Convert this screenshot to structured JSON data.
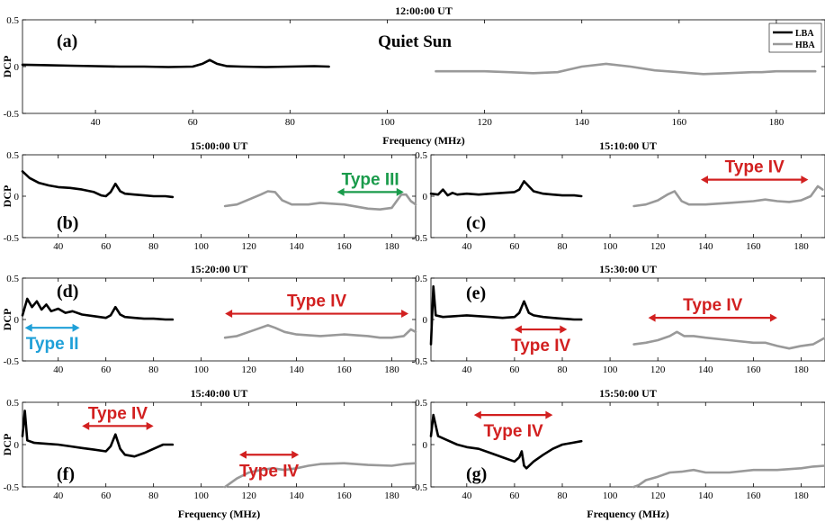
{
  "chart_data": [
    {
      "type": "line",
      "panel_label": "(a)",
      "title": "12:00:00 UT",
      "subtitle": "Quiet Sun",
      "ylabel": "DCP",
      "xlabel": "Frequency (MHz)",
      "xlim": [
        25,
        190
      ],
      "ylim": [
        -0.5,
        0.5
      ],
      "xticks": [
        40,
        60,
        80,
        100,
        120,
        140,
        160,
        180
      ],
      "yticks": [
        -0.5,
        0,
        0.5
      ],
      "legend": {
        "position": "top-right",
        "entries": [
          "LBA",
          "HBA"
        ]
      },
      "series": [
        {
          "name": "LBA",
          "color": "#000000",
          "x": [
            25,
            30,
            35,
            40,
            45,
            50,
            55,
            60,
            62,
            63.5,
            65,
            67,
            70,
            75,
            80,
            85,
            88
          ],
          "y": [
            0.02,
            0.015,
            0.01,
            0.005,
            0.0,
            0.0,
            -0.005,
            0.0,
            0.03,
            0.07,
            0.03,
            0.005,
            0.0,
            -0.005,
            0.0,
            0.005,
            0.0
          ]
        },
        {
          "name": "HBA",
          "color": "#999999",
          "x": [
            110,
            115,
            120,
            125,
            130,
            135,
            140,
            145,
            150,
            155,
            160,
            165,
            170,
            175,
            177,
            180,
            185,
            188
          ],
          "y": [
            -0.05,
            -0.05,
            -0.05,
            -0.06,
            -0.07,
            -0.06,
            0.0,
            0.03,
            0.0,
            -0.04,
            -0.06,
            -0.08,
            -0.07,
            -0.06,
            -0.06,
            -0.05,
            -0.05,
            -0.05
          ]
        }
      ],
      "annotations": []
    },
    {
      "type": "line",
      "panel_label": "(b)",
      "title": "15:00:00 UT",
      "ylabel": "DCP",
      "xlabel": "",
      "xlim": [
        25,
        190
      ],
      "ylim": [
        -0.5,
        0.5
      ],
      "xticks": [
        40,
        60,
        80,
        100,
        120,
        140,
        160,
        180
      ],
      "yticks": [
        -0.5,
        0,
        0.5
      ],
      "series": [
        {
          "name": "LBA",
          "color": "#000000",
          "x": [
            25,
            28,
            32,
            36,
            40,
            45,
            50,
            55,
            58,
            60,
            62,
            64,
            66,
            68,
            72,
            76,
            80,
            85,
            88
          ],
          "y": [
            0.3,
            0.22,
            0.16,
            0.13,
            0.11,
            0.1,
            0.08,
            0.05,
            0.01,
            0.0,
            0.05,
            0.15,
            0.06,
            0.03,
            0.02,
            0.01,
            0.0,
            0.0,
            -0.01
          ]
        },
        {
          "name": "HBA",
          "color": "#999999",
          "x": [
            110,
            115,
            120,
            125,
            128,
            131,
            134,
            138,
            145,
            150,
            160,
            170,
            175,
            180,
            184,
            186,
            188,
            190
          ],
          "y": [
            -0.12,
            -0.1,
            -0.04,
            0.02,
            0.06,
            0.05,
            -0.05,
            -0.1,
            -0.1,
            -0.08,
            -0.1,
            -0.15,
            -0.16,
            -0.14,
            0.02,
            0.02,
            -0.06,
            -0.1
          ]
        }
      ],
      "annotations": [
        {
          "text": "Type III",
          "color": "#1a9b4b",
          "x_start": 157,
          "x_end": 185,
          "y": 0.05
        }
      ]
    },
    {
      "type": "line",
      "panel_label": "(c)",
      "title": "15:10:00 UT",
      "ylabel": "",
      "xlabel": "",
      "xlim": [
        25,
        190
      ],
      "ylim": [
        -0.5,
        0.5
      ],
      "xticks": [
        40,
        60,
        80,
        100,
        120,
        140,
        160,
        180
      ],
      "yticks": [
        -0.5,
        0,
        0.5
      ],
      "series": [
        {
          "name": "LBA",
          "color": "#000000",
          "x": [
            25,
            28,
            30,
            32,
            34,
            36,
            40,
            45,
            50,
            55,
            60,
            62,
            64,
            66,
            68,
            72,
            76,
            80,
            85,
            88
          ],
          "y": [
            0.03,
            0.02,
            0.08,
            0.01,
            0.04,
            0.02,
            0.03,
            0.02,
            0.03,
            0.04,
            0.05,
            0.08,
            0.18,
            0.12,
            0.06,
            0.03,
            0.02,
            0.01,
            0.01,
            0.0
          ]
        },
        {
          "name": "HBA",
          "color": "#999999",
          "x": [
            110,
            115,
            120,
            124,
            127,
            130,
            133,
            140,
            150,
            160,
            165,
            170,
            175,
            180,
            184,
            187,
            189
          ],
          "y": [
            -0.12,
            -0.1,
            -0.05,
            0.02,
            0.06,
            -0.06,
            -0.1,
            -0.1,
            -0.08,
            -0.06,
            -0.04,
            -0.06,
            -0.07,
            -0.05,
            0.0,
            0.12,
            0.08
          ]
        }
      ],
      "annotations": [
        {
          "text": "Type IV",
          "color": "#d22020",
          "x_start": 138,
          "x_end": 183,
          "y": 0.2
        }
      ]
    },
    {
      "type": "line",
      "panel_label": "(d)",
      "title": "15:20:00 UT",
      "ylabel": "DCP",
      "xlabel": "",
      "xlim": [
        25,
        190
      ],
      "ylim": [
        -0.5,
        0.5
      ],
      "xticks": [
        40,
        60,
        80,
        100,
        120,
        140,
        160,
        180
      ],
      "yticks": [
        -0.5,
        0,
        0.5
      ],
      "series": [
        {
          "name": "LBA",
          "color": "#000000",
          "x": [
            25,
            27,
            29,
            31,
            33,
            35,
            37,
            40,
            43,
            46,
            50,
            55,
            60,
            62,
            64,
            66,
            68,
            72,
            76,
            80,
            85,
            88
          ],
          "y": [
            0.05,
            0.25,
            0.15,
            0.22,
            0.12,
            0.18,
            0.1,
            0.13,
            0.08,
            0.1,
            0.06,
            0.04,
            0.02,
            0.05,
            0.15,
            0.06,
            0.03,
            0.02,
            0.01,
            0.01,
            0.0,
            0.0
          ]
        },
        {
          "name": "HBA",
          "color": "#999999",
          "x": [
            110,
            115,
            120,
            125,
            128,
            131,
            135,
            140,
            150,
            160,
            170,
            175,
            180,
            185,
            188,
            190
          ],
          "y": [
            -0.22,
            -0.2,
            -0.15,
            -0.1,
            -0.07,
            -0.1,
            -0.15,
            -0.18,
            -0.2,
            -0.18,
            -0.2,
            -0.22,
            -0.22,
            -0.2,
            -0.12,
            -0.15
          ]
        }
      ],
      "annotations": [
        {
          "text": "Type IV",
          "color": "#d22020",
          "x_start": 110,
          "x_end": 187,
          "y": 0.07
        },
        {
          "text": "Type II",
          "color": "#1fa0d8",
          "x_start": 26,
          "x_end": 49,
          "y": -0.1
        }
      ]
    },
    {
      "type": "line",
      "panel_label": "(e)",
      "title": "15:30:00 UT",
      "ylabel": "",
      "xlabel": "",
      "xlim": [
        25,
        190
      ],
      "ylim": [
        -0.5,
        0.5
      ],
      "xticks": [
        40,
        60,
        80,
        100,
        120,
        140,
        160,
        180
      ],
      "yticks": [
        -0.5,
        0,
        0.5
      ],
      "series": [
        {
          "name": "LBA",
          "color": "#000000",
          "x": [
            25,
            26,
            27,
            30,
            35,
            40,
            45,
            50,
            55,
            60,
            62,
            64,
            66,
            68,
            72,
            76,
            80,
            85,
            88
          ],
          "y": [
            -0.3,
            0.4,
            0.05,
            0.03,
            0.04,
            0.05,
            0.04,
            0.03,
            0.02,
            0.03,
            0.08,
            0.22,
            0.08,
            0.05,
            0.03,
            0.02,
            0.01,
            0.0,
            0.0
          ]
        },
        {
          "name": "HBA",
          "color": "#999999",
          "x": [
            110,
            115,
            120,
            125,
            128,
            131,
            135,
            140,
            150,
            160,
            165,
            170,
            175,
            180,
            185,
            190
          ],
          "y": [
            -0.3,
            -0.28,
            -0.25,
            -0.2,
            -0.15,
            -0.2,
            -0.2,
            -0.22,
            -0.25,
            -0.28,
            -0.28,
            -0.32,
            -0.35,
            -0.32,
            -0.3,
            -0.22
          ]
        }
      ],
      "annotations": [
        {
          "text": "Type IV",
          "color": "#d22020",
          "x_start": 116,
          "x_end": 170,
          "y": 0.02
        },
        {
          "text": "Type IV",
          "color": "#d22020",
          "x_start": 60,
          "x_end": 82,
          "y": -0.12
        }
      ]
    },
    {
      "type": "line",
      "panel_label": "(f)",
      "title": "15:40:00 UT",
      "ylabel": "DCP",
      "xlabel": "Frequency (MHz)",
      "xlim": [
        25,
        190
      ],
      "ylim": [
        -0.5,
        0.5
      ],
      "xticks": [
        40,
        60,
        80,
        100,
        120,
        140,
        160,
        180
      ],
      "yticks": [
        -0.5,
        0,
        0.5
      ],
      "series": [
        {
          "name": "LBA",
          "color": "#000000",
          "x": [
            25,
            26,
            27,
            30,
            35,
            40,
            45,
            50,
            55,
            60,
            62,
            64,
            66,
            68,
            72,
            76,
            80,
            84,
            88
          ],
          "y": [
            0.1,
            0.4,
            0.05,
            0.02,
            0.01,
            0.0,
            -0.02,
            -0.04,
            -0.06,
            -0.08,
            -0.02,
            0.12,
            -0.05,
            -0.12,
            -0.14,
            -0.1,
            -0.05,
            0.0,
            0.0
          ]
        },
        {
          "name": "HBA",
          "color": "#999999",
          "x": [
            110,
            115,
            120,
            125,
            130,
            135,
            140,
            145,
            150,
            160,
            170,
            180,
            185,
            190
          ],
          "y": [
            -0.5,
            -0.4,
            -0.33,
            -0.3,
            -0.28,
            -0.3,
            -0.28,
            -0.25,
            -0.23,
            -0.22,
            -0.24,
            -0.25,
            -0.23,
            -0.22
          ]
        }
      ],
      "annotations": [
        {
          "text": "Type IV",
          "color": "#d22020",
          "x_start": 50,
          "x_end": 80,
          "y": 0.22
        },
        {
          "text": "Type IV",
          "color": "#d22020",
          "x_start": 116,
          "x_end": 141,
          "y": -0.12
        }
      ]
    },
    {
      "type": "line",
      "panel_label": "(g)",
      "title": "15:50:00 UT",
      "ylabel": "",
      "xlabel": "Frequency (MHz)",
      "xlim": [
        25,
        190
      ],
      "ylim": [
        -0.5,
        0.5
      ],
      "xticks": [
        40,
        60,
        80,
        100,
        120,
        140,
        160,
        180
      ],
      "yticks": [
        -0.5,
        0,
        0.5
      ],
      "series": [
        {
          "name": "LBA",
          "color": "#000000",
          "x": [
            25,
            26,
            28,
            32,
            36,
            40,
            45,
            50,
            55,
            60,
            62,
            63,
            64,
            65,
            68,
            72,
            76,
            80,
            84,
            88
          ],
          "y": [
            0.1,
            0.35,
            0.1,
            0.05,
            0.0,
            -0.03,
            -0.05,
            -0.1,
            -0.15,
            -0.2,
            -0.15,
            -0.08,
            -0.25,
            -0.28,
            -0.2,
            -0.12,
            -0.05,
            0.0,
            0.02,
            0.04
          ]
        },
        {
          "name": "HBA",
          "color": "#999999",
          "x": [
            110,
            112,
            115,
            120,
            125,
            130,
            135,
            140,
            150,
            160,
            170,
            180,
            185,
            190
          ],
          "y": [
            -0.5,
            -0.48,
            -0.42,
            -0.38,
            -0.33,
            -0.32,
            -0.3,
            -0.33,
            -0.33,
            -0.3,
            -0.3,
            -0.28,
            -0.26,
            -0.25
          ]
        }
      ],
      "annotations": [
        {
          "text": "Type IV",
          "color": "#d22020",
          "x_start": 43,
          "x_end": 76,
          "y": 0.35
        }
      ]
    }
  ]
}
